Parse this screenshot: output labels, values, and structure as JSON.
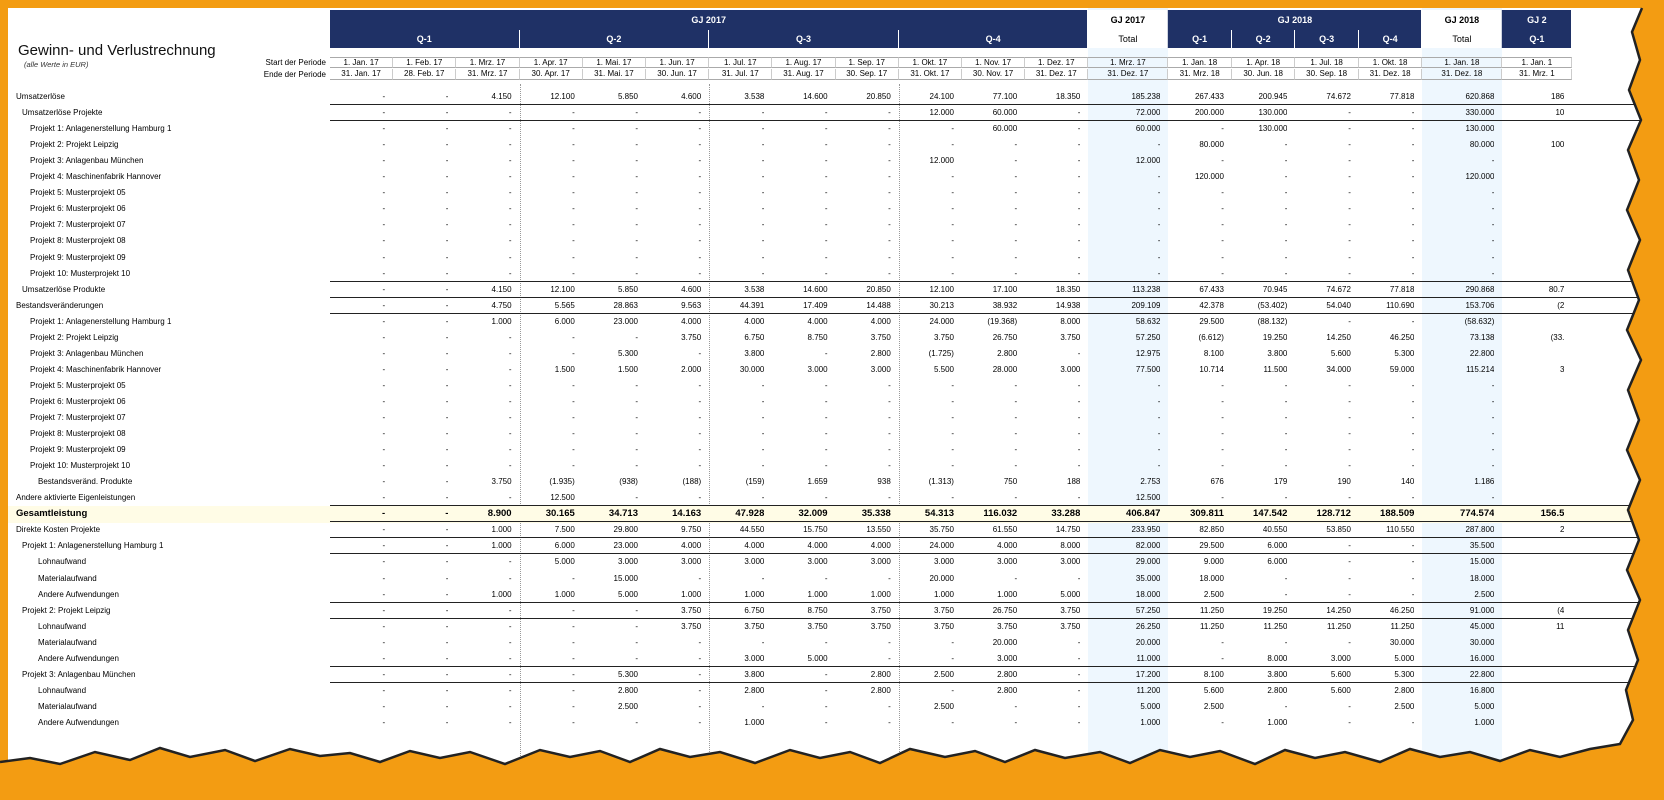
{
  "sheet": {
    "title": "Gewinn- und Verlustrechnung",
    "subtitle": "(alle Werte in EUR)",
    "start_label": "Start der Periode",
    "end_label": "Ende der Periode"
  },
  "header": {
    "fy_bands": [
      {
        "label": "GJ 2017",
        "span": 12
      },
      {
        "label": "GJ 2017",
        "span": 1,
        "total": true
      },
      {
        "label": "GJ 2018",
        "span": 4
      },
      {
        "label": "GJ 2018",
        "span": 1,
        "total": true
      },
      {
        "label": "GJ 2",
        "span": 1
      }
    ],
    "q_bands": [
      {
        "label": "Q-1",
        "span": 3
      },
      {
        "label": "Q-2",
        "span": 3
      },
      {
        "label": "Q-3",
        "span": 3
      },
      {
        "label": "Q-4",
        "span": 3
      },
      {
        "label": "Total",
        "span": 1,
        "total": true
      },
      {
        "label": "Q-1",
        "span": 1
      },
      {
        "label": "Q-2",
        "span": 1
      },
      {
        "label": "Q-3",
        "span": 1
      },
      {
        "label": "Q-4",
        "span": 1
      },
      {
        "label": "Total",
        "span": 1,
        "total": true
      },
      {
        "label": "Q-1",
        "span": 1
      }
    ],
    "start_dates": [
      "1. Jan. 17",
      "1. Feb. 17",
      "1. Mrz. 17",
      "1. Apr. 17",
      "1. Mai. 17",
      "1. Jun. 17",
      "1. Jul. 17",
      "1. Aug. 17",
      "1. Sep. 17",
      "1. Okt. 17",
      "1. Nov. 17",
      "1. Dez. 17",
      "1. Mrz. 17",
      "1. Jan. 18",
      "1. Apr. 18",
      "1. Jul. 18",
      "1. Okt. 18",
      "1. Jan. 18",
      "1. Jan. 1"
    ],
    "end_dates": [
      "31. Jan. 17",
      "28. Feb. 17",
      "31. Mrz. 17",
      "30. Apr. 17",
      "31. Mai. 17",
      "30. Jun. 17",
      "31. Jul. 17",
      "31. Aug. 17",
      "30. Sep. 17",
      "31. Okt. 17",
      "30. Nov. 17",
      "31. Dez. 17",
      "31. Dez. 17",
      "31. Mrz. 18",
      "30. Jun. 18",
      "30. Sep. 18",
      "31. Dez. 18",
      "31. Dez. 18",
      "31. Mrz. 1"
    ]
  },
  "rows": [
    {
      "label": "Umsatzerlöse",
      "indent": 0,
      "v": [
        "-",
        "-",
        "4.150",
        "12.100",
        "5.850",
        "4.600",
        "3.538",
        "14.600",
        "20.850",
        "24.100",
        "77.100",
        "18.350",
        "185.238",
        "267.433",
        "200.945",
        "74.672",
        "77.818",
        "620.868",
        "186"
      ]
    },
    {
      "label": "Umsatzerlöse Projekte",
      "indent": 1,
      "line": true,
      "v": [
        "-",
        "-",
        "-",
        "-",
        "-",
        "-",
        "-",
        "-",
        "-",
        "12.000",
        "60.000",
        "-",
        "72.000",
        "200.000",
        "130.000",
        "-",
        "-",
        "330.000",
        "10"
      ]
    },
    {
      "label": "Projekt 1: Anlagenerstellung Hamburg 1",
      "indent": 2,
      "line": true,
      "v": [
        "-",
        "-",
        "-",
        "-",
        "-",
        "-",
        "-",
        "-",
        "-",
        "-",
        "60.000",
        "-",
        "60.000",
        "-",
        "130.000",
        "-",
        "-",
        "130.000",
        ""
      ]
    },
    {
      "label": "Projekt 2: Projekt Leipzig",
      "indent": 2,
      "v": [
        "-",
        "-",
        "-",
        "-",
        "-",
        "-",
        "-",
        "-",
        "-",
        "-",
        "-",
        "-",
        "-",
        "80.000",
        "-",
        "-",
        "-",
        "80.000",
        "100"
      ]
    },
    {
      "label": "Projekt 3: Anlagenbau München",
      "indent": 2,
      "v": [
        "-",
        "-",
        "-",
        "-",
        "-",
        "-",
        "-",
        "-",
        "-",
        "12.000",
        "-",
        "-",
        "12.000",
        "-",
        "-",
        "-",
        "-",
        "-",
        ""
      ]
    },
    {
      "label": "Projekt 4: Maschinenfabrik Hannover",
      "indent": 2,
      "v": [
        "-",
        "-",
        "-",
        "-",
        "-",
        "-",
        "-",
        "-",
        "-",
        "-",
        "-",
        "-",
        "-",
        "120.000",
        "-",
        "-",
        "-",
        "120.000",
        ""
      ]
    },
    {
      "label": "Projekt 5: Musterprojekt 05",
      "indent": 2,
      "v": [
        "-",
        "-",
        "-",
        "-",
        "-",
        "-",
        "-",
        "-",
        "-",
        "-",
        "-",
        "-",
        "-",
        "-",
        "-",
        "-",
        "-",
        "-",
        ""
      ]
    },
    {
      "label": "Projekt 6: Musterprojekt 06",
      "indent": 2,
      "v": [
        "-",
        "-",
        "-",
        "-",
        "-",
        "-",
        "-",
        "-",
        "-",
        "-",
        "-",
        "-",
        "-",
        "-",
        "-",
        "-",
        "-",
        "-",
        ""
      ]
    },
    {
      "label": "Projekt 7: Musterprojekt 07",
      "indent": 2,
      "v": [
        "-",
        "-",
        "-",
        "-",
        "-",
        "-",
        "-",
        "-",
        "-",
        "-",
        "-",
        "-",
        "-",
        "-",
        "-",
        "-",
        "-",
        "-",
        ""
      ]
    },
    {
      "label": "Projekt 8: Musterprojekt 08",
      "indent": 2,
      "v": [
        "-",
        "-",
        "-",
        "-",
        "-",
        "-",
        "-",
        "-",
        "-",
        "-",
        "-",
        "-",
        "-",
        "-",
        "-",
        "-",
        "-",
        "-",
        ""
      ]
    },
    {
      "label": "Projekt 9: Musterprojekt 09",
      "indent": 2,
      "v": [
        "-",
        "-",
        "-",
        "-",
        "-",
        "-",
        "-",
        "-",
        "-",
        "-",
        "-",
        "-",
        "-",
        "-",
        "-",
        "-",
        "-",
        "-",
        ""
      ]
    },
    {
      "label": "Projekt 10: Musterprojekt 10",
      "indent": 2,
      "v": [
        "-",
        "-",
        "-",
        "-",
        "-",
        "-",
        "-",
        "-",
        "-",
        "-",
        "-",
        "-",
        "-",
        "-",
        "-",
        "-",
        "-",
        "-",
        ""
      ]
    },
    {
      "label": "Umsatzerlöse Produkte",
      "indent": 1,
      "line": true,
      "v": [
        "-",
        "-",
        "4.150",
        "12.100",
        "5.850",
        "4.600",
        "3.538",
        "14.600",
        "20.850",
        "12.100",
        "17.100",
        "18.350",
        "113.238",
        "67.433",
        "70.945",
        "74.672",
        "77.818",
        "290.868",
        "80.7"
      ]
    },
    {
      "label": "Bestandsveränderungen",
      "indent": 0,
      "line": true,
      "v": [
        "-",
        "-",
        "4.750",
        "5.565",
        "28.863",
        "9.563",
        "44.391",
        "17.409",
        "14.488",
        "30.213",
        "38.932",
        "14.938",
        "209.109",
        "42.378",
        "(53.402)",
        "54.040",
        "110.690",
        "153.706",
        "(2"
      ]
    },
    {
      "label": "Projekt 1: Anlagenerstellung Hamburg 1",
      "indent": 2,
      "line": true,
      "v": [
        "-",
        "-",
        "1.000",
        "6.000",
        "23.000",
        "4.000",
        "4.000",
        "4.000",
        "4.000",
        "24.000",
        "(19.368)",
        "8.000",
        "58.632",
        "29.500",
        "(88.132)",
        "-",
        "-",
        "(58.632)",
        ""
      ]
    },
    {
      "label": "Projekt 2: Projekt Leipzig",
      "indent": 2,
      "v": [
        "-",
        "-",
        "-",
        "-",
        "-",
        "3.750",
        "6.750",
        "8.750",
        "3.750",
        "3.750",
        "26.750",
        "3.750",
        "57.250",
        "(6.612)",
        "19.250",
        "14.250",
        "46.250",
        "73.138",
        "(33."
      ]
    },
    {
      "label": "Projekt 3: Anlagenbau München",
      "indent": 2,
      "v": [
        "-",
        "-",
        "-",
        "-",
        "5.300",
        "-",
        "3.800",
        "-",
        "2.800",
        "(1.725)",
        "2.800",
        "-",
        "12.975",
        "8.100",
        "3.800",
        "5.600",
        "5.300",
        "22.800",
        ""
      ]
    },
    {
      "label": "Projekt 4: Maschinenfabrik Hannover",
      "indent": 2,
      "v": [
        "-",
        "-",
        "-",
        "1.500",
        "1.500",
        "2.000",
        "30.000",
        "3.000",
        "3.000",
        "5.500",
        "28.000",
        "3.000",
        "77.500",
        "10.714",
        "11.500",
        "34.000",
        "59.000",
        "115.214",
        "3"
      ]
    },
    {
      "label": "Projekt 5: Musterprojekt 05",
      "indent": 2,
      "v": [
        "-",
        "-",
        "-",
        "-",
        "-",
        "-",
        "-",
        "-",
        "-",
        "-",
        "-",
        "-",
        "-",
        "-",
        "-",
        "-",
        "-",
        "-",
        ""
      ]
    },
    {
      "label": "Projekt 6: Musterprojekt 06",
      "indent": 2,
      "v": [
        "-",
        "-",
        "-",
        "-",
        "-",
        "-",
        "-",
        "-",
        "-",
        "-",
        "-",
        "-",
        "-",
        "-",
        "-",
        "-",
        "-",
        "-",
        ""
      ]
    },
    {
      "label": "Projekt 7: Musterprojekt 07",
      "indent": 2,
      "v": [
        "-",
        "-",
        "-",
        "-",
        "-",
        "-",
        "-",
        "-",
        "-",
        "-",
        "-",
        "-",
        "-",
        "-",
        "-",
        "-",
        "-",
        "-",
        ""
      ]
    },
    {
      "label": "Projekt 8: Musterprojekt 08",
      "indent": 2,
      "v": [
        "-",
        "-",
        "-",
        "-",
        "-",
        "-",
        "-",
        "-",
        "-",
        "-",
        "-",
        "-",
        "-",
        "-",
        "-",
        "-",
        "-",
        "-",
        ""
      ]
    },
    {
      "label": "Projekt 9: Musterprojekt 09",
      "indent": 2,
      "v": [
        "-",
        "-",
        "-",
        "-",
        "-",
        "-",
        "-",
        "-",
        "-",
        "-",
        "-",
        "-",
        "-",
        "-",
        "-",
        "-",
        "-",
        "-",
        ""
      ]
    },
    {
      "label": "Projekt 10: Musterprojekt 10",
      "indent": 2,
      "v": [
        "-",
        "-",
        "-",
        "-",
        "-",
        "-",
        "-",
        "-",
        "-",
        "-",
        "-",
        "-",
        "-",
        "-",
        "-",
        "-",
        "-",
        "-",
        ""
      ]
    },
    {
      "label": "Bestandsveränd. Produkte",
      "indent": 3,
      "v": [
        "-",
        "-",
        "3.750",
        "(1.935)",
        "(938)",
        "(188)",
        "(159)",
        "1.659",
        "938",
        "(1.313)",
        "750",
        "188",
        "2.753",
        "676",
        "179",
        "190",
        "140",
        "1.186",
        ""
      ]
    },
    {
      "label": "Andere aktivierte Eigenleistungen",
      "indent": 0,
      "v": [
        "-",
        "-",
        "-",
        "12.500",
        "-",
        "-",
        "-",
        "-",
        "-",
        "-",
        "-",
        "-",
        "12.500",
        "-",
        "-",
        "-",
        "-",
        "-",
        ""
      ]
    },
    {
      "label": "Gesamtleistung",
      "indent": 0,
      "bold": true,
      "highlight": true,
      "line": true,
      "v": [
        "-",
        "-",
        "8.900",
        "30.165",
        "34.713",
        "14.163",
        "47.928",
        "32.009",
        "35.338",
        "54.313",
        "116.032",
        "33.288",
        "406.847",
        "309.811",
        "147.542",
        "128.712",
        "188.509",
        "774.574",
        "156.5"
      ]
    },
    {
      "label": "Direkte Kosten Projekte",
      "indent": 0,
      "line": true,
      "v": [
        "-",
        "-",
        "1.000",
        "7.500",
        "29.800",
        "9.750",
        "44.550",
        "15.750",
        "13.550",
        "35.750",
        "61.550",
        "14.750",
        "233.950",
        "82.850",
        "40.550",
        "53.850",
        "110.550",
        "287.800",
        "2"
      ]
    },
    {
      "label": "Projekt 1: Anlagenerstellung Hamburg 1",
      "indent": 1,
      "line": true,
      "v": [
        "-",
        "-",
        "1.000",
        "6.000",
        "23.000",
        "4.000",
        "4.000",
        "4.000",
        "4.000",
        "24.000",
        "4.000",
        "8.000",
        "82.000",
        "29.500",
        "6.000",
        "-",
        "-",
        "35.500",
        ""
      ]
    },
    {
      "label": "Lohnaufwand",
      "indent": 3,
      "line": true,
      "v": [
        "-",
        "-",
        "-",
        "5.000",
        "3.000",
        "3.000",
        "3.000",
        "3.000",
        "3.000",
        "3.000",
        "3.000",
        "3.000",
        "29.000",
        "9.000",
        "6.000",
        "-",
        "-",
        "15.000",
        ""
      ]
    },
    {
      "label": "Materialaufwand",
      "indent": 3,
      "v": [
        "-",
        "-",
        "-",
        "-",
        "15.000",
        "-",
        "-",
        "-",
        "-",
        "20.000",
        "-",
        "-",
        "35.000",
        "18.000",
        "-",
        "-",
        "-",
        "18.000",
        ""
      ]
    },
    {
      "label": "Andere Aufwendungen",
      "indent": 3,
      "v": [
        "-",
        "-",
        "1.000",
        "1.000",
        "5.000",
        "1.000",
        "1.000",
        "1.000",
        "1.000",
        "1.000",
        "1.000",
        "5.000",
        "18.000",
        "2.500",
        "-",
        "-",
        "-",
        "2.500",
        ""
      ]
    },
    {
      "label": "Projekt 2: Projekt Leipzig",
      "indent": 1,
      "line": true,
      "v": [
        "-",
        "-",
        "-",
        "-",
        "-",
        "3.750",
        "6.750",
        "8.750",
        "3.750",
        "3.750",
        "26.750",
        "3.750",
        "57.250",
        "11.250",
        "19.250",
        "14.250",
        "46.250",
        "91.000",
        "(4"
      ]
    },
    {
      "label": "Lohnaufwand",
      "indent": 3,
      "line": true,
      "v": [
        "-",
        "-",
        "-",
        "-",
        "-",
        "3.750",
        "3.750",
        "3.750",
        "3.750",
        "3.750",
        "3.750",
        "3.750",
        "26.250",
        "11.250",
        "11.250",
        "11.250",
        "11.250",
        "45.000",
        "11"
      ]
    },
    {
      "label": "Materialaufwand",
      "indent": 3,
      "v": [
        "-",
        "-",
        "-",
        "-",
        "-",
        "-",
        "-",
        "-",
        "-",
        "-",
        "20.000",
        "-",
        "20.000",
        "-",
        "-",
        "-",
        "30.000",
        "30.000",
        ""
      ]
    },
    {
      "label": "Andere Aufwendungen",
      "indent": 3,
      "v": [
        "-",
        "-",
        "-",
        "-",
        "-",
        "-",
        "3.000",
        "5.000",
        "-",
        "-",
        "3.000",
        "-",
        "11.000",
        "-",
        "8.000",
        "3.000",
        "5.000",
        "16.000",
        ""
      ]
    },
    {
      "label": "Projekt 3: Anlagenbau München",
      "indent": 1,
      "line": true,
      "v": [
        "-",
        "-",
        "-",
        "-",
        "5.300",
        "-",
        "3.800",
        "-",
        "2.800",
        "2.500",
        "2.800",
        "-",
        "17.200",
        "8.100",
        "3.800",
        "5.600",
        "5.300",
        "22.800",
        ""
      ]
    },
    {
      "label": "Lohnaufwand",
      "indent": 3,
      "line": true,
      "v": [
        "-",
        "-",
        "-",
        "-",
        "2.800",
        "-",
        "2.800",
        "-",
        "2.800",
        "-",
        "2.800",
        "-",
        "11.200",
        "5.600",
        "2.800",
        "5.600",
        "2.800",
        "16.800",
        ""
      ]
    },
    {
      "label": "Materialaufwand",
      "indent": 3,
      "v": [
        "-",
        "-",
        "-",
        "-",
        "2.500",
        "-",
        "-",
        "-",
        "-",
        "2.500",
        "-",
        "-",
        "5.000",
        "2.500",
        "-",
        "-",
        "2.500",
        "5.000",
        ""
      ]
    },
    {
      "label": "Andere Aufwendungen",
      "indent": 3,
      "v": [
        "-",
        "-",
        "-",
        "-",
        "-",
        "-",
        "1.000",
        "-",
        "-",
        "-",
        "-",
        "-",
        "1.000",
        "-",
        "1.000",
        "-",
        "-",
        "1.000",
        ""
      ]
    }
  ]
}
